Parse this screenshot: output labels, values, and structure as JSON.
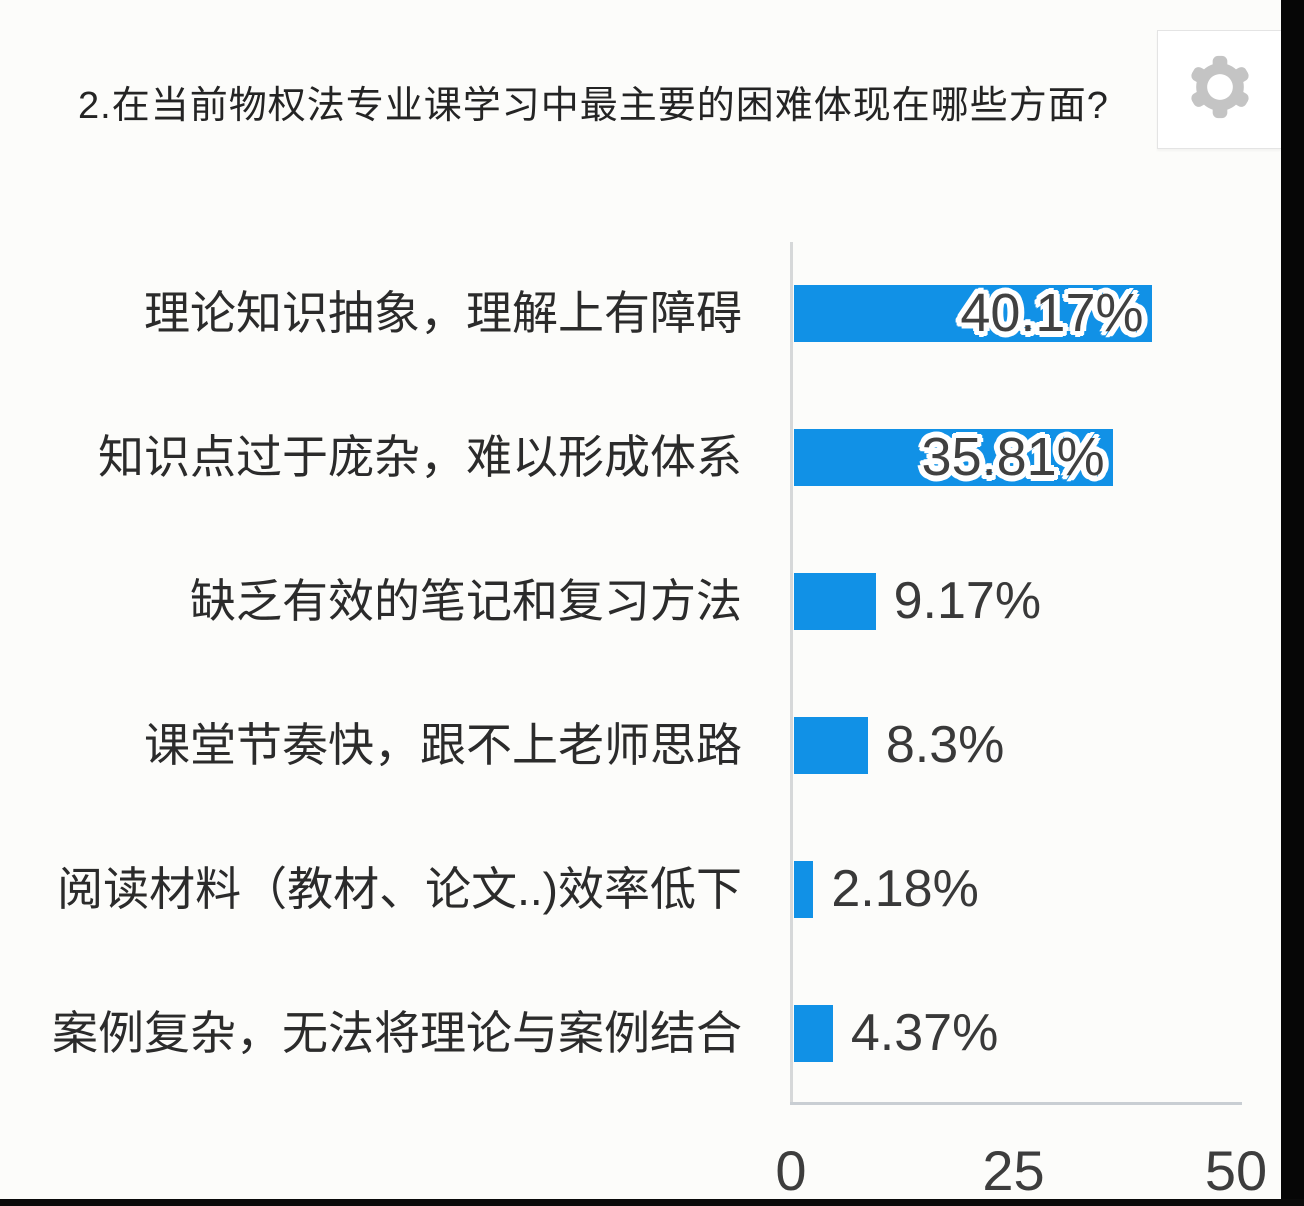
{
  "window": {
    "background": "#fcfcfa",
    "right_strip_color": "#060606",
    "bottom_strip_color": "#0a0a0a"
  },
  "header": {
    "question_title": "2.在当前物权法专业课学习中最主要的困难体现在哪些方面?"
  },
  "settings": {
    "icon": "gear-icon",
    "icon_color": "#c4c4c4",
    "card_background": "#ffffff"
  },
  "chart_data": {
    "type": "bar",
    "orientation": "horizontal",
    "title": "2.在当前物权法专业课学习中最主要的困难体现在哪些方面?",
    "categories": [
      "理论知识抽象，理解上有障碍",
      "知识点过于庞杂，难以形成体系",
      "缺乏有效的笔记和复习方法",
      "课堂节奏快，跟不上老师思路",
      "阅读材料（教材、论文..)效率低下",
      "案例复杂，无法将理论与案例结合"
    ],
    "values": [
      40.17,
      35.81,
      9.17,
      8.3,
      2.18,
      4.37
    ],
    "value_labels": [
      "40.17%",
      "35.81%",
      "9.17%",
      "8.3%",
      "2.18%",
      "4.37%"
    ],
    "value_label_position": [
      "inside-end",
      "inside-end",
      "outside-end",
      "outside-end",
      "outside-end",
      "outside-end"
    ],
    "xlim": [
      0,
      50
    ],
    "x_ticks": [
      "0",
      "25",
      "50"
    ],
    "bar_color": "#1191e6",
    "axis_color": "#d6d8d9",
    "grid": false,
    "legend": false
  }
}
